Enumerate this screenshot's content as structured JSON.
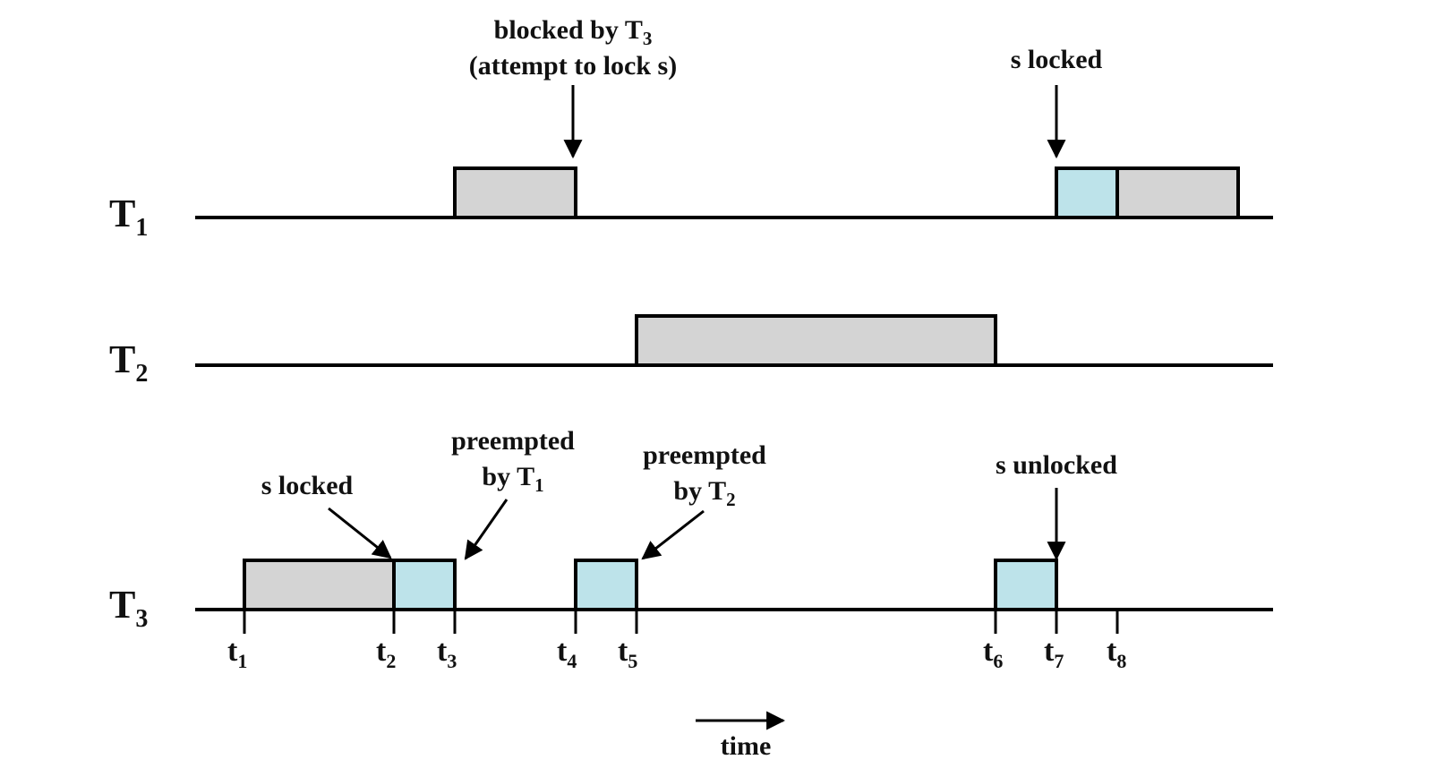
{
  "colors": {
    "normal": "#d4d4d4",
    "critical": "#bde3ea",
    "line": "#000000"
  },
  "tasks": [
    {
      "name": "T",
      "sub": "1"
    },
    {
      "name": "T",
      "sub": "2"
    },
    {
      "name": "T",
      "sub": "3"
    }
  ],
  "ticks": [
    {
      "name": "t",
      "sub": "1"
    },
    {
      "name": "t",
      "sub": "2"
    },
    {
      "name": "t",
      "sub": "3"
    },
    {
      "name": "t",
      "sub": "4"
    },
    {
      "name": "t",
      "sub": "5"
    },
    {
      "name": "t",
      "sub": "6"
    },
    {
      "name": "t",
      "sub": "7"
    },
    {
      "name": "t",
      "sub": "8"
    }
  ],
  "segments": [
    {
      "task": 1,
      "from": 3,
      "to": 4,
      "kind": "normal"
    },
    {
      "task": 1,
      "from": 7,
      "to": 8,
      "kind": "critical"
    },
    {
      "task": 1,
      "from": 8,
      "to": 9,
      "kind": "normal"
    },
    {
      "task": 2,
      "from": 5,
      "to": 6,
      "kind": "normal"
    },
    {
      "task": 3,
      "from": 1,
      "to": 2,
      "kind": "normal"
    },
    {
      "task": 3,
      "from": 2,
      "to": 3,
      "kind": "critical"
    },
    {
      "task": 3,
      "from": 4,
      "to": 5,
      "kind": "critical"
    },
    {
      "task": 3,
      "from": 6,
      "to": 7,
      "kind": "critical"
    }
  ],
  "annotations": {
    "blocked_line1": "blocked by T",
    "blocked_line1_sub": "3",
    "blocked_line2": "(attempt to lock s)",
    "t1_s_locked": "s locked",
    "t3_s_locked": "s locked",
    "preempted1_line1": "preempted",
    "preempted1_line2": "by T",
    "preempted1_sub": "1",
    "preempted2_line1": "preempted",
    "preempted2_line2": "by T",
    "preempted2_sub": "2",
    "s_unlocked": "s unlocked"
  },
  "time_label": "time"
}
